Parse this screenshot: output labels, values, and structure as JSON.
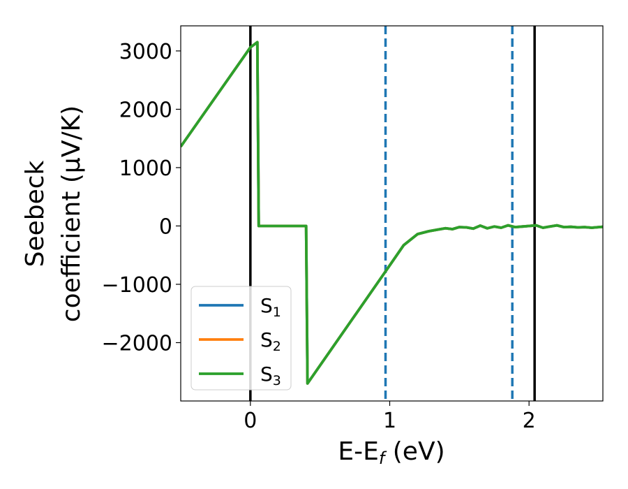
{
  "chart_data": {
    "type": "line",
    "xlabel": "E-E",
    "xlabel_sub": "f",
    "xlabel_unit": " (eV)",
    "ylabel_line1": "Seebeck",
    "ylabel_line2": "coefficient  (μV/K)",
    "xlim": [
      -0.5,
      2.53
    ],
    "ylim": [
      -3000,
      3430
    ],
    "x_ticks": [
      0,
      1,
      2
    ],
    "x_tick_labels": [
      "0",
      "1",
      "2"
    ],
    "y_ticks": [
      3000,
      2000,
      1000,
      0,
      -1000,
      -2000
    ],
    "y_tick_labels": [
      "3000",
      "2000",
      "1000",
      "0",
      "−1000",
      "−2000"
    ],
    "grid": false,
    "legend_position": "lower-left",
    "vertical_lines": [
      {
        "x": 0.0,
        "color": "#000000",
        "style": "solid"
      },
      {
        "x": 2.04,
        "color": "#000000",
        "style": "solid"
      },
      {
        "x": 0.97,
        "color": "#1f77b4",
        "style": "dashed"
      },
      {
        "x": 1.88,
        "color": "#1f77b4",
        "style": "dashed"
      }
    ],
    "series": [
      {
        "name": "S",
        "sub": "1",
        "color": "#1f77b4",
        "points": [
          [
            -0.5,
            1360
          ],
          [
            0.0,
            3060
          ],
          [
            0.05,
            3150
          ],
          [
            0.06,
            0
          ],
          [
            0.4,
            0
          ],
          [
            0.41,
            -2700
          ],
          [
            0.97,
            -780
          ],
          [
            1.1,
            -330
          ],
          [
            1.2,
            -140
          ],
          [
            1.28,
            -90
          ],
          [
            1.35,
            -60
          ],
          [
            1.4,
            -40
          ],
          [
            1.45,
            -55
          ],
          [
            1.5,
            -20
          ],
          [
            1.55,
            -25
          ],
          [
            1.6,
            -45
          ],
          [
            1.65,
            5
          ],
          [
            1.7,
            -40
          ],
          [
            1.75,
            -10
          ],
          [
            1.8,
            -30
          ],
          [
            1.85,
            10
          ],
          [
            1.9,
            -20
          ],
          [
            1.95,
            -10
          ],
          [
            2.0,
            0
          ],
          [
            2.05,
            10
          ],
          [
            2.1,
            -30
          ],
          [
            2.15,
            -10
          ],
          [
            2.2,
            10
          ],
          [
            2.25,
            -20
          ],
          [
            2.3,
            -15
          ],
          [
            2.35,
            -25
          ],
          [
            2.4,
            -20
          ],
          [
            2.45,
            -30
          ],
          [
            2.5,
            -20
          ],
          [
            2.53,
            -15
          ]
        ]
      },
      {
        "name": "S",
        "sub": "2",
        "color": "#ff7f0e",
        "points": [
          [
            -0.5,
            1360
          ],
          [
            0.0,
            3060
          ],
          [
            0.05,
            3150
          ],
          [
            0.06,
            0
          ],
          [
            0.4,
            0
          ],
          [
            0.41,
            -2700
          ],
          [
            0.97,
            -780
          ],
          [
            1.1,
            -330
          ],
          [
            1.2,
            -140
          ],
          [
            1.28,
            -90
          ],
          [
            1.35,
            -60
          ],
          [
            1.4,
            -40
          ],
          [
            1.45,
            -55
          ],
          [
            1.5,
            -20
          ],
          [
            1.55,
            -25
          ],
          [
            1.6,
            -45
          ],
          [
            1.65,
            5
          ],
          [
            1.7,
            -40
          ],
          [
            1.75,
            -10
          ],
          [
            1.8,
            -30
          ],
          [
            1.85,
            10
          ],
          [
            1.9,
            -20
          ],
          [
            1.95,
            -10
          ],
          [
            2.0,
            0
          ],
          [
            2.05,
            10
          ],
          [
            2.1,
            -30
          ],
          [
            2.15,
            -10
          ],
          [
            2.2,
            10
          ],
          [
            2.25,
            -20
          ],
          [
            2.3,
            -15
          ],
          [
            2.35,
            -25
          ],
          [
            2.4,
            -20
          ],
          [
            2.45,
            -30
          ],
          [
            2.5,
            -20
          ],
          [
            2.53,
            -15
          ]
        ]
      },
      {
        "name": "S",
        "sub": "3",
        "color": "#2ca02c",
        "points": [
          [
            -0.5,
            1360
          ],
          [
            0.0,
            3060
          ],
          [
            0.05,
            3150
          ],
          [
            0.06,
            0
          ],
          [
            0.4,
            0
          ],
          [
            0.41,
            -2700
          ],
          [
            0.97,
            -780
          ],
          [
            1.1,
            -330
          ],
          [
            1.2,
            -140
          ],
          [
            1.28,
            -90
          ],
          [
            1.35,
            -60
          ],
          [
            1.4,
            -40
          ],
          [
            1.45,
            -55
          ],
          [
            1.5,
            -20
          ],
          [
            1.55,
            -25
          ],
          [
            1.6,
            -45
          ],
          [
            1.65,
            5
          ],
          [
            1.7,
            -40
          ],
          [
            1.75,
            -10
          ],
          [
            1.8,
            -30
          ],
          [
            1.85,
            10
          ],
          [
            1.9,
            -20
          ],
          [
            1.95,
            -10
          ],
          [
            2.0,
            0
          ],
          [
            2.05,
            10
          ],
          [
            2.1,
            -30
          ],
          [
            2.15,
            -10
          ],
          [
            2.2,
            10
          ],
          [
            2.25,
            -20
          ],
          [
            2.3,
            -15
          ],
          [
            2.35,
            -25
          ],
          [
            2.4,
            -20
          ],
          [
            2.45,
            -30
          ],
          [
            2.5,
            -20
          ],
          [
            2.53,
            -15
          ]
        ]
      }
    ]
  }
}
